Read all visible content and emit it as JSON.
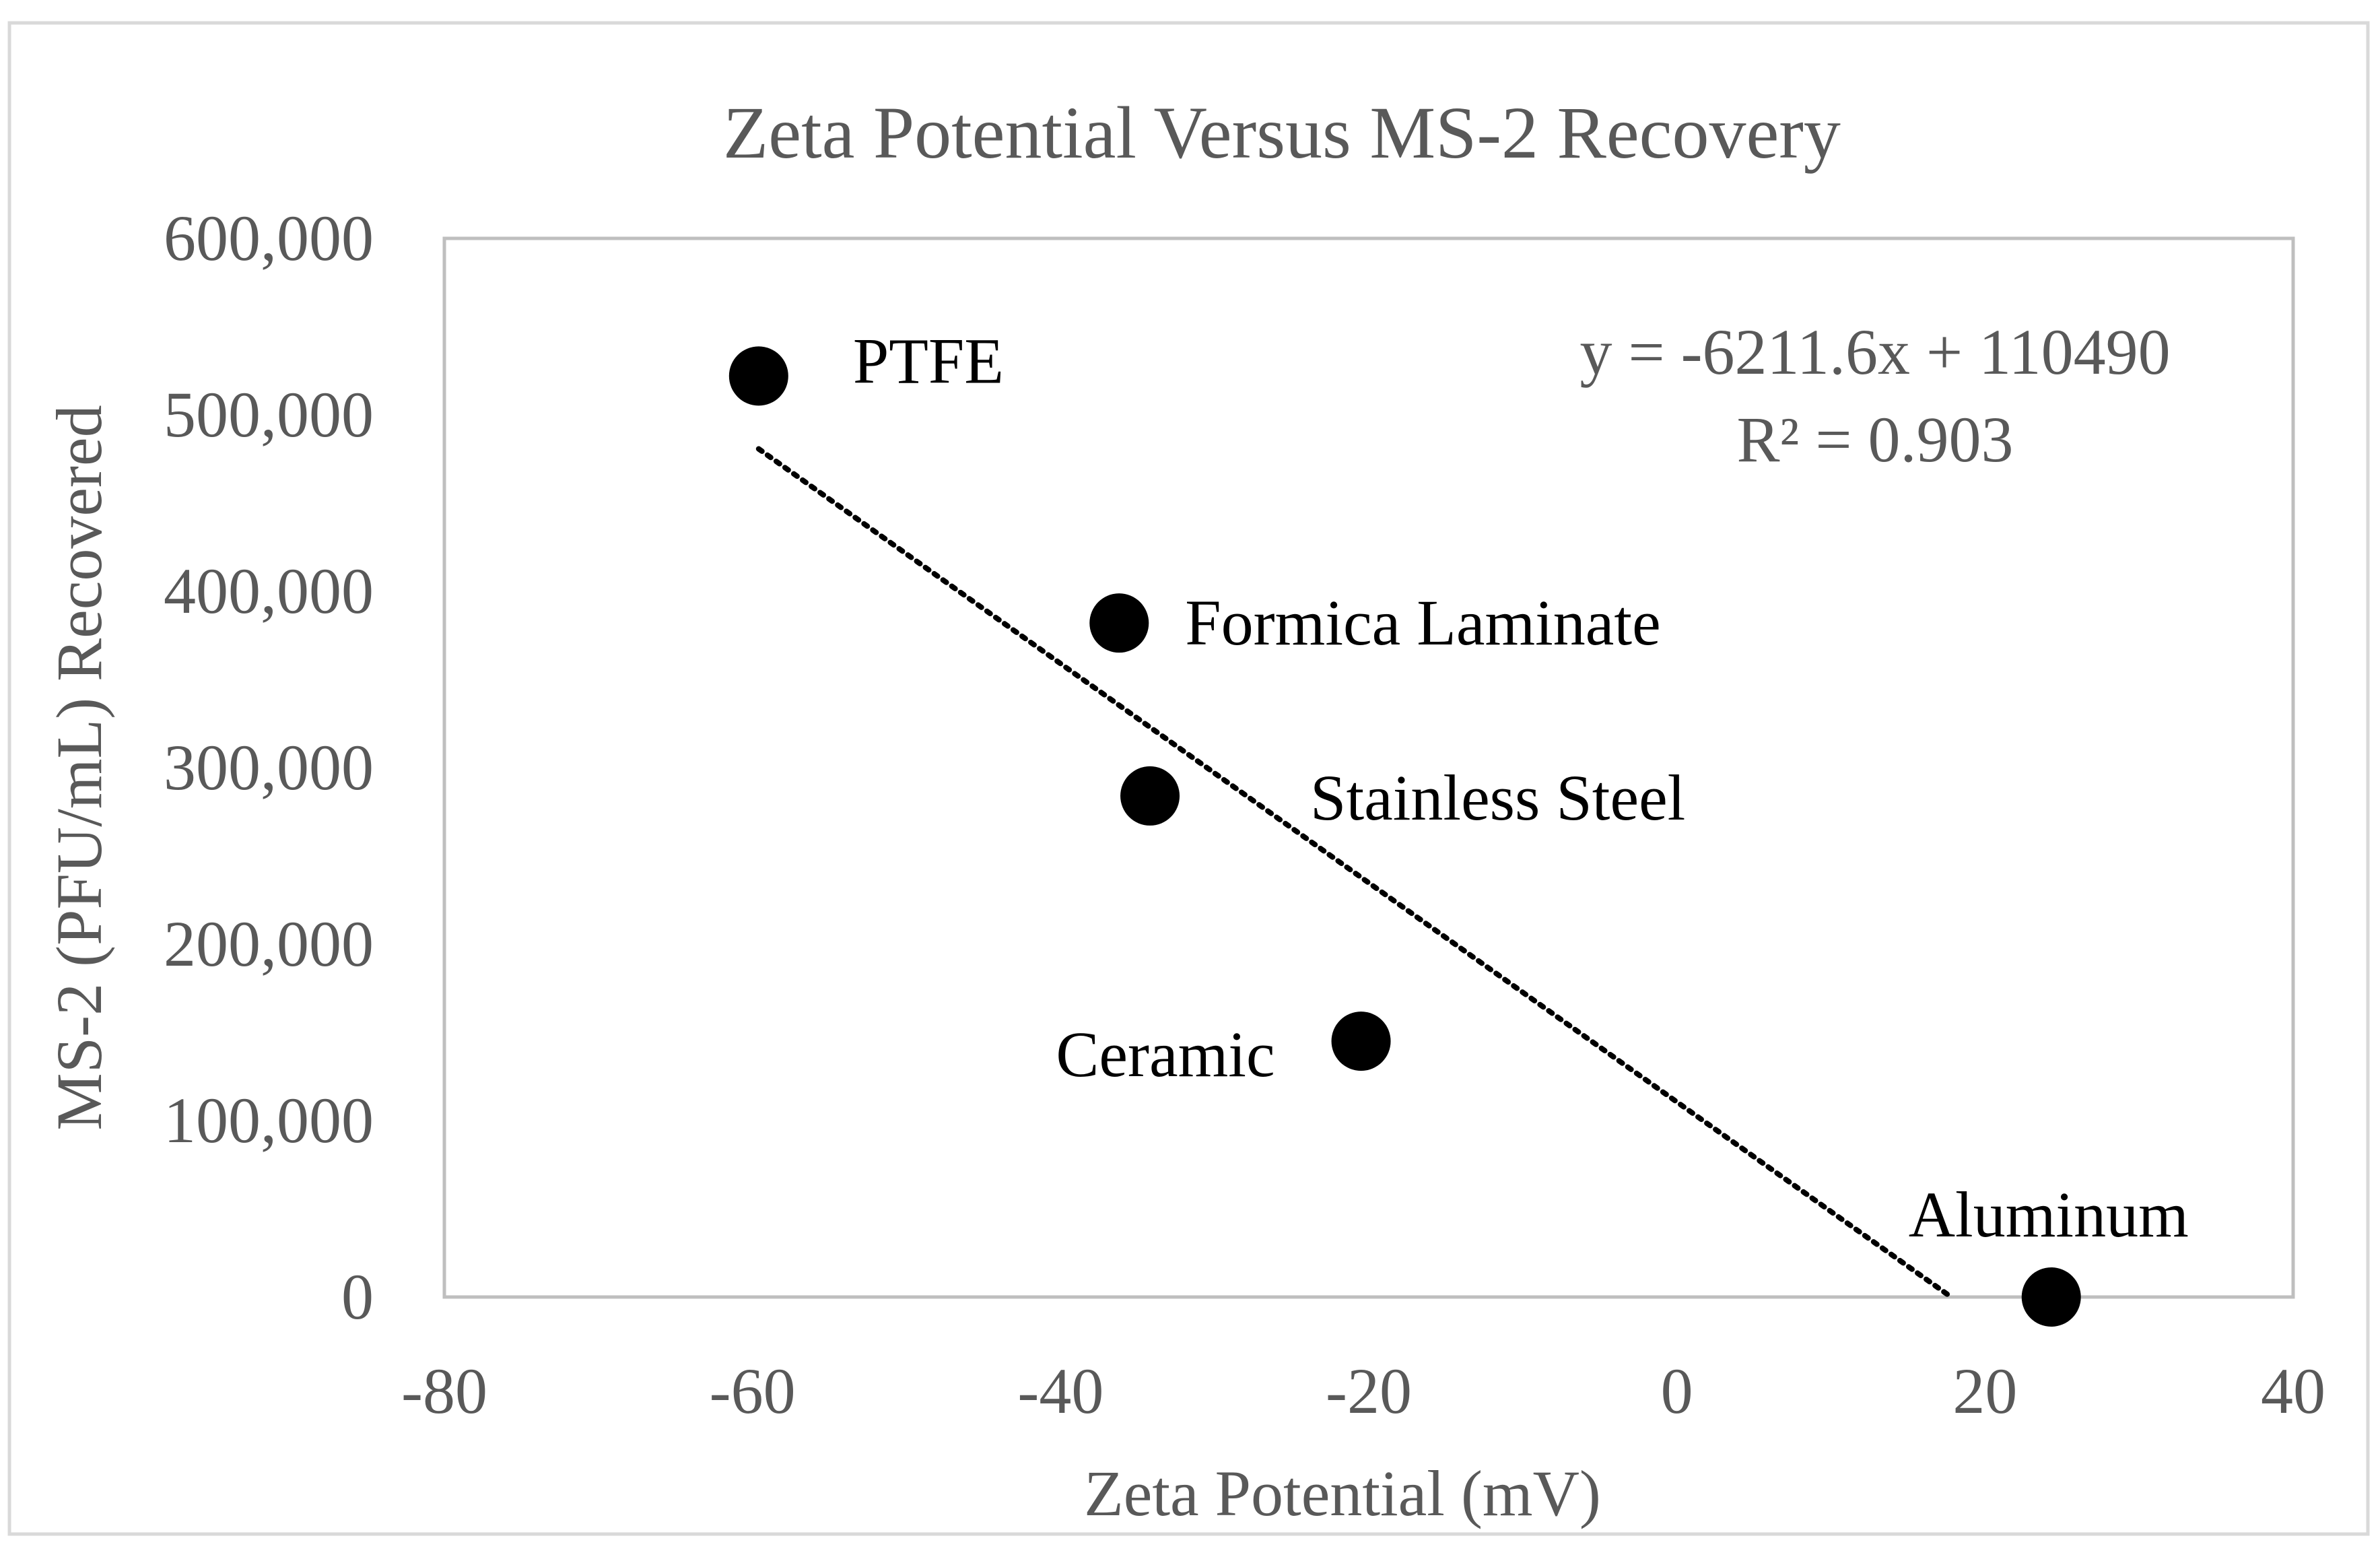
{
  "chart_data": {
    "type": "scatter",
    "title": "Zeta Potential Versus MS-2 Recovery",
    "xlabel": "Zeta Potential (mV)",
    "ylabel": "MS-2 (PFU/mL) Recovered",
    "xlim": [
      -80,
      40
    ],
    "ylim": [
      0,
      600000
    ],
    "x_ticks": [
      -80,
      -60,
      -40,
      -20,
      0,
      20,
      40
    ],
    "x_tick_labels": [
      "-80",
      "-60",
      "-40",
      "-20",
      "0",
      "20",
      "40"
    ],
    "y_ticks": [
      0,
      100000,
      200000,
      300000,
      400000,
      500000,
      600000
    ],
    "y_tick_labels": [
      "0",
      "100,000",
      "200,000",
      "300,000",
      "400,000",
      "500,000",
      "600,000"
    ],
    "grid": false,
    "legend": "none",
    "series": [
      {
        "name": "MS-2 Recovery",
        "points": [
          {
            "label": "PTFE",
            "x": -59.6,
            "y": 522000,
            "label_position": "right"
          },
          {
            "label": "Formica Laminate",
            "x": -36.2,
            "y": 382000,
            "label_position": "right"
          },
          {
            "label": "Stainless Steel",
            "x": -34.2,
            "y": 284000,
            "label_position": "right"
          },
          {
            "label": "Ceramic",
            "x": -20.5,
            "y": 145000,
            "label_position": "left"
          },
          {
            "label": "Aluminum",
            "x": 24.3,
            "y": 0,
            "label_position": "above"
          }
        ]
      }
    ],
    "trendline": {
      "type": "linear",
      "style": "dotted",
      "slope": -6211.6,
      "intercept": 110490,
      "x_range": [
        -59.6,
        17.8
      ],
      "equation": "y = -6211.6x + 110490",
      "r_squared": "R² = 0.903"
    },
    "colors": {
      "points": "#000000",
      "text": "#595959",
      "frame": "#bfbfbf",
      "trendline": "#000000"
    }
  }
}
